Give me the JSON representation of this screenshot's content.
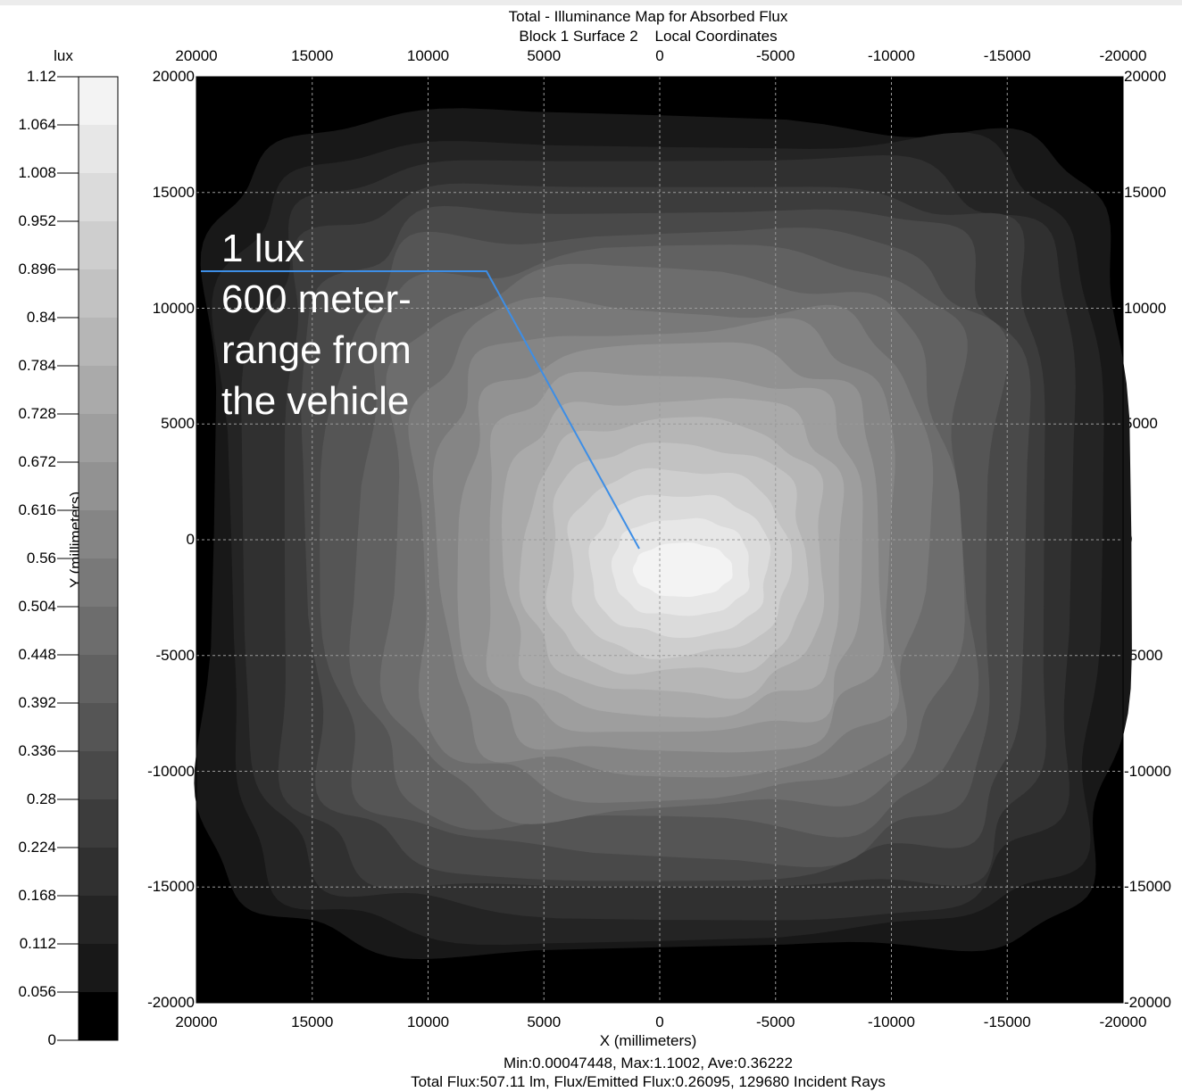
{
  "chart_data": {
    "type": "heatmap",
    "title": "Total - Illuminance Map for Absorbed Flux",
    "subtitle": "Block 1 Surface 2    Local Coordinates",
    "xlabel": "X (millimeters)",
    "ylabel": "Y (millimeters)",
    "colorbar_label": "lux",
    "xlim": [
      20000,
      -20000
    ],
    "ylim": [
      -20000,
      20000
    ],
    "x_ticks": [
      "20000",
      "15000",
      "10000",
      "5000",
      "0",
      "-5000",
      "-10000",
      "-15000",
      "-20000"
    ],
    "x_tick_values": [
      20000,
      15000,
      10000,
      5000,
      0,
      -5000,
      -10000,
      -15000,
      -20000
    ],
    "y_ticks": [
      "20000",
      "15000",
      "10000",
      "5000",
      "0",
      "-5000",
      "-10000",
      "-15000",
      "-20000"
    ],
    "y_tick_values": [
      20000,
      15000,
      10000,
      5000,
      0,
      -5000,
      -10000,
      -15000,
      -20000
    ],
    "colorbar_ticks": [
      "1.12",
      "1.064",
      "1.008",
      "0.952",
      "0.896",
      "0.84",
      "0.784",
      "0.728",
      "0.672",
      "0.616",
      "0.56",
      "0.504",
      "0.448",
      "0.392",
      "0.336",
      "0.28",
      "0.224",
      "0.168",
      "0.112",
      "0.056",
      "0"
    ],
    "colorbar_values": [
      1.12,
      1.064,
      1.008,
      0.952,
      0.896,
      0.84,
      0.784,
      0.728,
      0.672,
      0.616,
      0.56,
      0.504,
      0.448,
      0.392,
      0.336,
      0.28,
      0.224,
      0.168,
      0.112,
      0.056,
      0
    ],
    "colorbar_range": [
      0,
      1.12
    ],
    "peak_location": [
      -1000,
      -1300
    ],
    "grid": true,
    "annotation": {
      "lines": [
        "1 lux",
        "600 meter-",
        "range from",
        "the vehicle"
      ],
      "color": "#3d8ee6"
    },
    "stats": {
      "line1": "Min:0.00047448, Max:1.1002, Ave:0.36222",
      "line2": "Total Flux:507.11 lm, Flux/Emitted Flux:0.26095, 129680 Incident Rays"
    }
  }
}
